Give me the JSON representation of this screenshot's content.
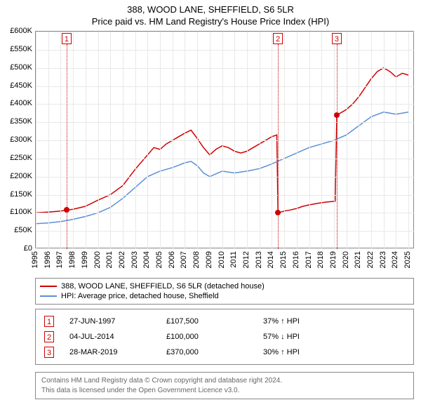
{
  "title_line1": "388, WOOD LANE, SHEFFIELD, S6 5LR",
  "title_line2": "Price paid vs. HM Land Registry's House Price Index (HPI)",
  "chart": {
    "type": "line",
    "background_color": "#ffffff",
    "grid_color": "#e8e8e8",
    "axis_color": "#888888",
    "label_fontsize": 11,
    "ylim": [
      0,
      600000
    ],
    "ytick_step": 50000,
    "yticks": [
      "£0",
      "£50K",
      "£100K",
      "£150K",
      "£200K",
      "£250K",
      "£300K",
      "£350K",
      "£400K",
      "£450K",
      "£500K",
      "£550K",
      "£600K"
    ],
    "xlim": [
      1995,
      2025.5
    ],
    "xticks": [
      1995,
      1996,
      1997,
      1998,
      1999,
      2000,
      2001,
      2002,
      2003,
      2004,
      2005,
      2006,
      2007,
      2008,
      2009,
      2010,
      2011,
      2012,
      2013,
      2014,
      2015,
      2016,
      2017,
      2018,
      2019,
      2020,
      2021,
      2022,
      2023,
      2024,
      2025
    ],
    "series": [
      {
        "name": "388, WOOD LANE, SHEFFIELD, S6 5LR (detached house)",
        "color": "#d00000",
        "line_width": 1.5,
        "points": [
          [
            1995.0,
            100000
          ],
          [
            1996.0,
            102000
          ],
          [
            1997.0,
            105000
          ],
          [
            1997.48,
            107500
          ],
          [
            1998.0,
            110000
          ],
          [
            1999.0,
            118000
          ],
          [
            2000.0,
            135000
          ],
          [
            2001.0,
            150000
          ],
          [
            2002.0,
            175000
          ],
          [
            2003.0,
            220000
          ],
          [
            2004.0,
            260000
          ],
          [
            2004.5,
            280000
          ],
          [
            2005.0,
            275000
          ],
          [
            2005.5,
            290000
          ],
          [
            2006.0,
            300000
          ],
          [
            2006.5,
            310000
          ],
          [
            2007.0,
            320000
          ],
          [
            2007.5,
            328000
          ],
          [
            2008.0,
            305000
          ],
          [
            2008.5,
            280000
          ],
          [
            2009.0,
            260000
          ],
          [
            2009.5,
            275000
          ],
          [
            2010.0,
            285000
          ],
          [
            2010.5,
            280000
          ],
          [
            2011.0,
            270000
          ],
          [
            2011.5,
            265000
          ],
          [
            2012.0,
            270000
          ],
          [
            2012.5,
            280000
          ],
          [
            2013.0,
            290000
          ],
          [
            2013.5,
            300000
          ],
          [
            2014.0,
            310000
          ],
          [
            2014.4,
            315000
          ],
          [
            2014.5,
            100000
          ],
          [
            2015.0,
            105000
          ],
          [
            2015.5,
            108000
          ],
          [
            2016.0,
            112000
          ],
          [
            2016.5,
            118000
          ],
          [
            2017.0,
            122000
          ],
          [
            2017.5,
            125000
          ],
          [
            2018.0,
            128000
          ],
          [
            2018.5,
            130000
          ],
          [
            2019.1,
            132000
          ],
          [
            2019.23,
            370000
          ],
          [
            2019.5,
            375000
          ],
          [
            2020.0,
            385000
          ],
          [
            2020.5,
            400000
          ],
          [
            2021.0,
            420000
          ],
          [
            2021.5,
            445000
          ],
          [
            2022.0,
            470000
          ],
          [
            2022.5,
            490000
          ],
          [
            2023.0,
            500000
          ],
          [
            2023.5,
            490000
          ],
          [
            2024.0,
            475000
          ],
          [
            2024.5,
            485000
          ],
          [
            2025.0,
            480000
          ]
        ]
      },
      {
        "name": "HPI: Average price, detached house, Sheffield",
        "color": "#5b8fd6",
        "line_width": 1.5,
        "points": [
          [
            1995.0,
            70000
          ],
          [
            1996.0,
            72000
          ],
          [
            1997.0,
            76000
          ],
          [
            1998.0,
            82000
          ],
          [
            1999.0,
            90000
          ],
          [
            2000.0,
            100000
          ],
          [
            2001.0,
            115000
          ],
          [
            2002.0,
            140000
          ],
          [
            2003.0,
            170000
          ],
          [
            2004.0,
            200000
          ],
          [
            2005.0,
            215000
          ],
          [
            2006.0,
            225000
          ],
          [
            2007.0,
            238000
          ],
          [
            2007.5,
            242000
          ],
          [
            2008.0,
            230000
          ],
          [
            2008.5,
            210000
          ],
          [
            2009.0,
            200000
          ],
          [
            2010.0,
            215000
          ],
          [
            2011.0,
            210000
          ],
          [
            2012.0,
            215000
          ],
          [
            2013.0,
            222000
          ],
          [
            2014.0,
            235000
          ],
          [
            2015.0,
            250000
          ],
          [
            2016.0,
            265000
          ],
          [
            2017.0,
            280000
          ],
          [
            2018.0,
            290000
          ],
          [
            2019.0,
            300000
          ],
          [
            2020.0,
            315000
          ],
          [
            2021.0,
            340000
          ],
          [
            2022.0,
            365000
          ],
          [
            2023.0,
            378000
          ],
          [
            2024.0,
            372000
          ],
          [
            2025.0,
            378000
          ]
        ]
      }
    ],
    "markers": [
      {
        "n": "1",
        "x": 1997.48,
        "y": 107500
      },
      {
        "n": "2",
        "x": 2014.5,
        "y": 100000
      },
      {
        "n": "3",
        "x": 2019.23,
        "y": 370000
      }
    ]
  },
  "legend": {
    "items": [
      {
        "color": "#d00000",
        "label": "388, WOOD LANE, SHEFFIELD, S6 5LR (detached house)"
      },
      {
        "color": "#5b8fd6",
        "label": "HPI: Average price, detached house, Sheffield"
      }
    ]
  },
  "transactions": [
    {
      "n": "1",
      "date": "27-JUN-1997",
      "price": "£107,500",
      "delta": "37% ↑ HPI"
    },
    {
      "n": "2",
      "date": "04-JUL-2014",
      "price": "£100,000",
      "delta": "57% ↓ HPI"
    },
    {
      "n": "3",
      "date": "28-MAR-2019",
      "price": "£370,000",
      "delta": "30% ↑ HPI"
    }
  ],
  "attribution": {
    "line1": "Contains HM Land Registry data © Crown copyright and database right 2024.",
    "line2": "This data is licensed under the Open Government Licence v3.0."
  }
}
